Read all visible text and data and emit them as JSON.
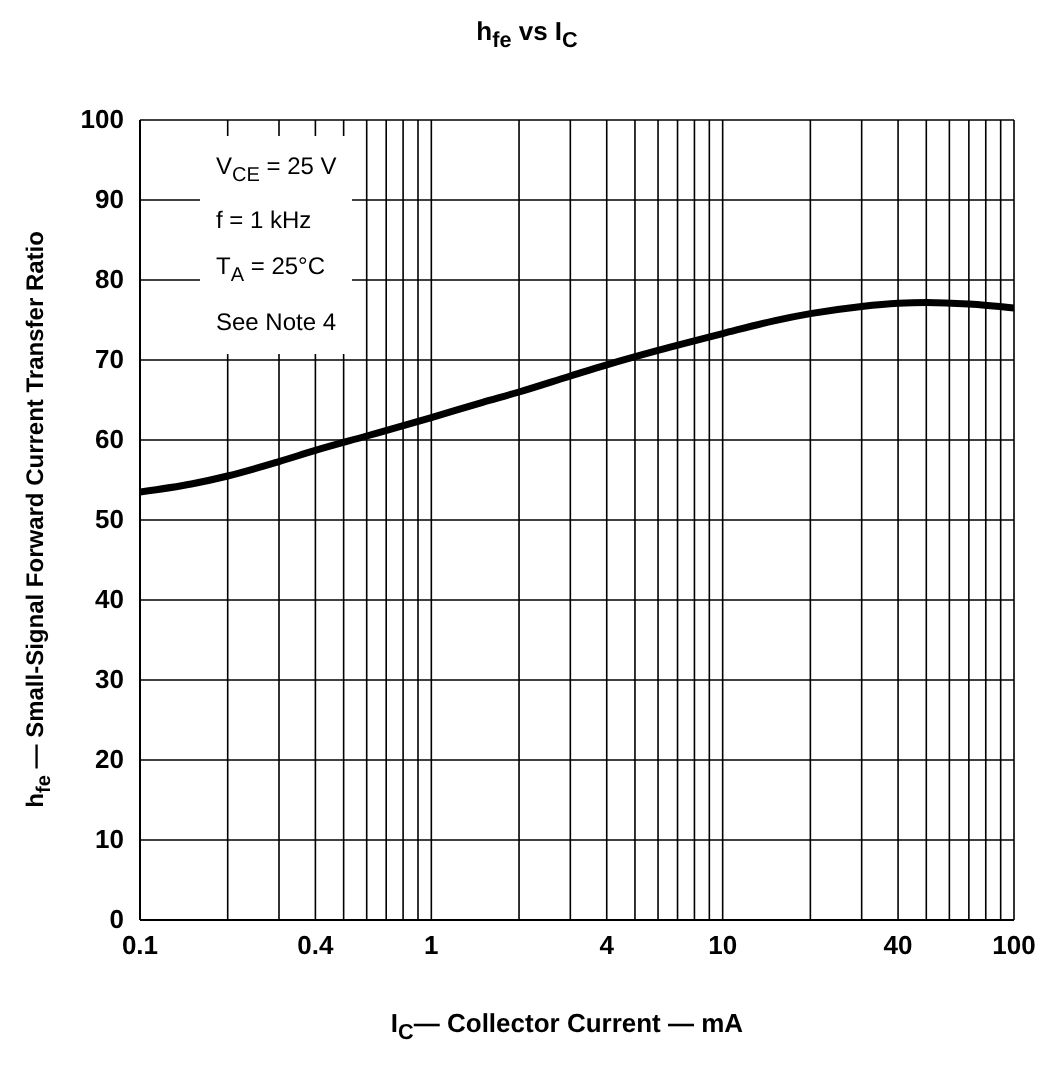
{
  "chart_data": {
    "type": "line",
    "title": "h$_{fe}$ vs I$_{C}$",
    "xlabel": "I$_{C}$— Collector Current — mA",
    "ylabel": "h$_{fe}$  — Small-Signal Forward Current Transfer Ratio",
    "annotations": [
      "V$_{CE}$ = 25 V",
      "f = 1 kHz",
      "T$_{A}$ = 25°C",
      "See Note 4"
    ],
    "x": [
      0.1,
      0.15,
      0.2,
      0.3,
      0.4,
      0.6,
      1,
      1.5,
      2,
      3,
      4,
      6,
      10,
      15,
      20,
      30,
      40,
      50,
      70,
      100
    ],
    "series": [
      {
        "color": "#000000",
        "values": [
          53.5,
          54.5,
          55.5,
          57.3,
          58.7,
          60.5,
          62.8,
          64.7,
          66,
          68,
          69.4,
          71.2,
          73.3,
          74.9,
          75.8,
          76.7,
          77.1,
          77.2,
          77,
          76.5
        ]
      }
    ],
    "log": "x",
    "grid": true,
    "marker": "none",
    "line_style": "solid",
    "legend": false,
    "xlim": [
      0.1,
      100
    ],
    "xticks": [
      0.1,
      {
        "value": 0.2,
        "label": null
      },
      {
        "value": 0.3,
        "label": null
      },
      0.4,
      {
        "value": 0.5,
        "label": null
      },
      {
        "value": 0.6,
        "label": null
      },
      {
        "value": 0.7,
        "label": null
      },
      {
        "value": 0.8,
        "label": null
      },
      {
        "value": 0.9,
        "label": null
      },
      1,
      {
        "value": 2,
        "label": null
      },
      {
        "value": 3,
        "label": null
      },
      4,
      {
        "value": 5,
        "label": null
      },
      {
        "value": 6,
        "label": null
      },
      {
        "value": 7,
        "label": null
      },
      {
        "value": 8,
        "label": null
      },
      {
        "value": 9,
        "label": null
      },
      10,
      {
        "value": 20,
        "label": null
      },
      {
        "value": 30,
        "label": null
      },
      40,
      {
        "value": 50,
        "label": null
      },
      {
        "value": 60,
        "label": null
      },
      {
        "value": 70,
        "label": null
      },
      {
        "value": 80,
        "label": null
      },
      {
        "value": 90,
        "label": null
      },
      100
    ],
    "ylim": [
      0,
      100
    ],
    "yticks": [
      0,
      10,
      20,
      30,
      40,
      50,
      60,
      70,
      80,
      90,
      100
    ]
  }
}
